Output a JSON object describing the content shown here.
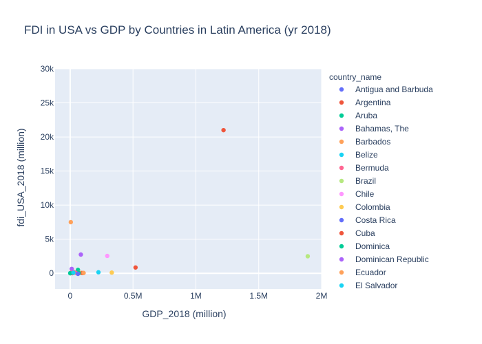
{
  "chart_data": {
    "type": "scatter",
    "title": "FDI in USA vs GDP by Countries in Latin America (yr 2018)",
    "xlabel": "GDP_2018 (million)",
    "ylabel": "fdi_USA_2018 (million)",
    "xlim": [
      -120000,
      2000000
    ],
    "ylim": [
      -2300,
      30000
    ],
    "x_ticks": [
      0,
      500000,
      1000000,
      1500000,
      2000000
    ],
    "x_tick_labels": [
      "0",
      "0.5M",
      "1M",
      "1.5M",
      "2M"
    ],
    "y_ticks": [
      0,
      5000,
      10000,
      15000,
      20000,
      25000,
      30000
    ],
    "y_tick_labels": [
      "0",
      "5k",
      "10k",
      "15k",
      "20k",
      "25k",
      "30k"
    ],
    "grid": true,
    "legend_title": "country_name",
    "legend_placement": "right",
    "series": [
      {
        "name": "Antigua and Barbuda",
        "color": "#636efa",
        "points": [
          [
            1600,
            30
          ]
        ]
      },
      {
        "name": "Argentina",
        "color": "#EF553B",
        "points": [
          [
            520000,
            850
          ]
        ]
      },
      {
        "name": "Aruba",
        "color": "#00cc96",
        "points": [
          [
            3200,
            50
          ]
        ]
      },
      {
        "name": "Bahamas, The",
        "color": "#ab63fa",
        "points": [
          [
            12500,
            650
          ]
        ]
      },
      {
        "name": "Barbados",
        "color": "#FFA15A",
        "points": [
          [
            5100,
            7500
          ]
        ]
      },
      {
        "name": "Belize",
        "color": "#19d3f3",
        "points": [
          [
            1900,
            20
          ]
        ]
      },
      {
        "name": "Bermuda",
        "color": "#FF6692",
        "points": [
          [
            7000,
            100
          ]
        ]
      },
      {
        "name": "Brazil",
        "color": "#B6E880",
        "points": [
          [
            1890000,
            2500
          ]
        ]
      },
      {
        "name": "Chile",
        "color": "#FF97FF",
        "points": [
          [
            295000,
            2550
          ]
        ]
      },
      {
        "name": "Colombia",
        "color": "#FECB52",
        "points": [
          [
            331000,
            100
          ]
        ]
      },
      {
        "name": "Costa Rica",
        "color": "#636efa",
        "points": [
          [
            62000,
            -80
          ]
        ]
      },
      {
        "name": "Cuba",
        "color": "#EF553B",
        "points": [
          [
            100000,
            30
          ]
        ]
      },
      {
        "name": "Dominica",
        "color": "#00cc96",
        "points": [
          [
            550,
            10
          ]
        ]
      },
      {
        "name": "Dominican Republic",
        "color": "#ab63fa",
        "points": [
          [
            85000,
            2750
          ]
        ]
      },
      {
        "name": "Ecuador",
        "color": "#FFA15A",
        "points": [
          [
            107000,
            50
          ]
        ]
      },
      {
        "name": "El Salvador",
        "color": "#19d3f3",
        "points": [
          [
            26000,
            80
          ]
        ]
      }
    ],
    "unlabeled_points": [
      {
        "color": "#EF553B",
        "x": 1220000,
        "y": 21000
      },
      {
        "color": "#19d3f3",
        "x": 225000,
        "y": 150
      },
      {
        "color": "#00cc96",
        "x": 62000,
        "y": 500
      },
      {
        "color": "#FFA15A",
        "x": 30000,
        "y": 180
      },
      {
        "color": "#FFA15A",
        "x": 90000,
        "y": 60
      },
      {
        "color": "#636efa",
        "x": 20000,
        "y": 40
      },
      {
        "color": "#ab63fa",
        "x": 40000,
        "y": 100
      },
      {
        "color": "#FECB52",
        "x": 75000,
        "y": 50
      },
      {
        "color": "#EF553B",
        "x": 18000,
        "y": 20
      },
      {
        "color": "#FF6692",
        "x": 45000,
        "y": 70
      },
      {
        "color": "#00cc96",
        "x": 70000,
        "y": 30
      }
    ]
  }
}
